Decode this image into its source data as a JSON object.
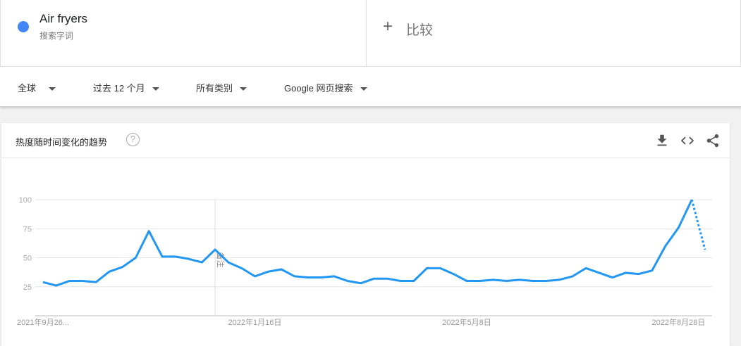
{
  "search_term": {
    "name": "Air fryers",
    "subtitle": "搜索字词",
    "color": "#4285f4"
  },
  "compare": {
    "label": "比较",
    "icon": "plus-icon"
  },
  "filters": [
    {
      "label": "全球"
    },
    {
      "label": "过去 12 个月"
    },
    {
      "label": "所有类别"
    },
    {
      "label": "Google 网页搜索"
    }
  ],
  "card": {
    "title": "热度随时间变化的趋势",
    "help_icon": "help-icon",
    "actions": [
      "download-icon",
      "embed-code-icon",
      "share-icon"
    ]
  },
  "chart_data": {
    "type": "line",
    "y_ticks": [
      25,
      50,
      75,
      100
    ],
    "ylim": [
      0,
      100
    ],
    "x_tick_labels": [
      "2021年9月26...",
      "2022年1月16日",
      "2022年5月8日",
      "2022年8月28日"
    ],
    "x_tick_indices": [
      0,
      16,
      32,
      48
    ],
    "annotation": {
      "label": "备注",
      "index": 13
    },
    "grid": true,
    "line_color": "#2196f3",
    "partial_last_point": true,
    "series": [
      {
        "name": "Air fryers",
        "values": [
          29,
          26,
          30,
          30,
          29,
          38,
          42,
          50,
          73,
          51,
          51,
          49,
          46,
          57,
          46,
          41,
          34,
          38,
          40,
          34,
          33,
          33,
          34,
          30,
          28,
          32,
          32,
          30,
          30,
          41,
          41,
          36,
          30,
          30,
          31,
          30,
          31,
          30,
          30,
          31,
          34,
          41,
          37,
          33,
          37,
          36,
          39,
          60,
          76,
          100,
          57
        ]
      }
    ]
  }
}
